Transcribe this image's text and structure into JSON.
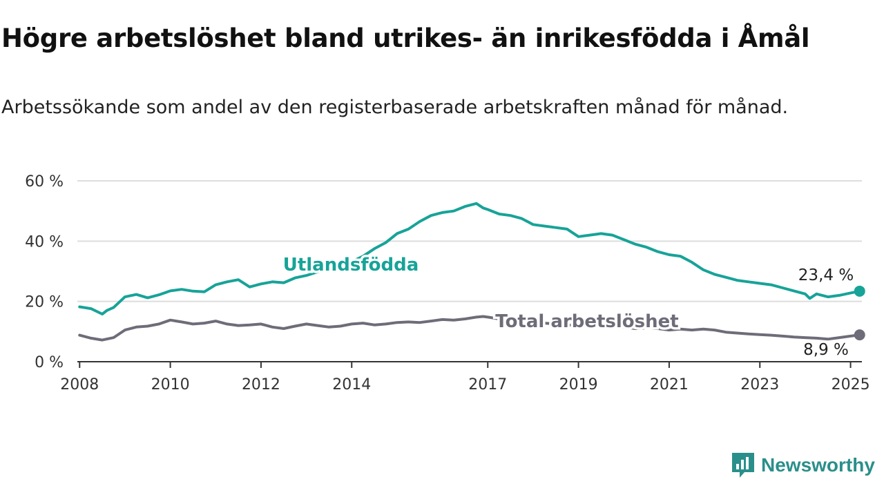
{
  "title": "Högre arbetslöshet bland utrikes- än inrikesfödda i Åmål",
  "subtitle": "Arbetssökande som andel av den registerbaserade arbetskraften månad för månad.",
  "logo": "Newsworthy",
  "colors": {
    "foreign": "#17a398",
    "total": "#6e6c78",
    "grid": "#dddddd",
    "axis": "#333333"
  },
  "chart_data": {
    "type": "line",
    "xlim": [
      2007.95,
      2025.25
    ],
    "ylim": [
      0,
      60
    ],
    "y_ticks": [
      0,
      20,
      40,
      60
    ],
    "y_tick_labels": [
      "0 %",
      "20 %",
      "40 %",
      "60 %"
    ],
    "x_ticks": [
      2008,
      2010,
      2012,
      2014,
      2017,
      2019,
      2021,
      2023,
      2025
    ],
    "x_tick_labels": [
      "2008",
      "2010",
      "2012",
      "2014",
      "2017",
      "2019",
      "2021",
      "2023",
      "2025"
    ],
    "grid": true,
    "series": [
      {
        "name": "Utlandsfödda",
        "end_label": "23,4 %",
        "x": [
          2008.0,
          2008.25,
          2008.5,
          2008.6,
          2008.75,
          2009.0,
          2009.25,
          2009.5,
          2009.75,
          2010.0,
          2010.25,
          2010.5,
          2010.75,
          2011.0,
          2011.25,
          2011.5,
          2011.75,
          2012.0,
          2012.25,
          2012.5,
          2012.75,
          2013.0,
          2013.25,
          2013.5,
          2013.75,
          2014.0,
          2014.25,
          2014.5,
          2014.75,
          2015.0,
          2015.25,
          2015.5,
          2015.75,
          2016.0,
          2016.25,
          2016.5,
          2016.75,
          2016.9,
          2017.0,
          2017.25,
          2017.5,
          2017.75,
          2018.0,
          2018.25,
          2018.5,
          2018.75,
          2019.0,
          2019.25,
          2019.5,
          2019.75,
          2020.0,
          2020.25,
          2020.5,
          2020.75,
          2021.0,
          2021.25,
          2021.5,
          2021.75,
          2022.0,
          2022.25,
          2022.5,
          2022.75,
          2023.0,
          2023.25,
          2023.5,
          2023.75,
          2024.0,
          2024.1,
          2024.25,
          2024.5,
          2024.75,
          2025.0,
          2025.2
        ],
        "values": [
          18.2,
          17.6,
          15.8,
          17.0,
          18.0,
          21.5,
          22.3,
          21.2,
          22.2,
          23.5,
          24.0,
          23.4,
          23.2,
          25.5,
          26.5,
          27.2,
          24.8,
          25.8,
          26.5,
          26.2,
          27.8,
          28.6,
          29.8,
          30.3,
          31.5,
          33.2,
          35.0,
          37.5,
          39.5,
          42.5,
          44.0,
          46.5,
          48.5,
          49.5,
          50.0,
          51.5,
          52.5,
          51.0,
          50.5,
          49.0,
          48.5,
          47.5,
          45.5,
          45.0,
          44.5,
          44.0,
          41.5,
          42.0,
          42.5,
          42.0,
          40.5,
          39.0,
          38.0,
          36.5,
          35.5,
          35.0,
          33.0,
          30.5,
          29.0,
          28.0,
          27.0,
          26.5,
          26.0,
          25.5,
          24.5,
          23.5,
          22.5,
          21.0,
          22.5,
          21.5,
          22.0,
          22.8,
          23.4
        ]
      },
      {
        "name": "Total arbetslöshet",
        "end_label": "8,9 %",
        "x": [
          2008.0,
          2008.25,
          2008.5,
          2008.75,
          2009.0,
          2009.25,
          2009.5,
          2009.75,
          2010.0,
          2010.25,
          2010.5,
          2010.75,
          2011.0,
          2011.25,
          2011.5,
          2011.75,
          2012.0,
          2012.25,
          2012.5,
          2012.75,
          2013.0,
          2013.25,
          2013.5,
          2013.75,
          2014.0,
          2014.25,
          2014.5,
          2014.75,
          2015.0,
          2015.25,
          2015.5,
          2015.75,
          2016.0,
          2016.25,
          2016.5,
          2016.75,
          2016.9,
          2017.0,
          2017.25,
          2017.5,
          2017.75,
          2018.0,
          2018.25,
          2018.5,
          2018.75,
          2019.0,
          2019.25,
          2019.5,
          2019.75,
          2020.0,
          2020.25,
          2020.5,
          2020.75,
          2021.0,
          2021.25,
          2021.5,
          2021.75,
          2022.0,
          2022.25,
          2022.5,
          2022.75,
          2023.0,
          2023.25,
          2023.5,
          2023.75,
          2024.0,
          2024.25,
          2024.5,
          2024.75,
          2025.0,
          2025.2
        ],
        "values": [
          8.8,
          7.8,
          7.2,
          8.0,
          10.5,
          11.5,
          11.8,
          12.5,
          13.8,
          13.2,
          12.5,
          12.8,
          13.5,
          12.5,
          12.0,
          12.2,
          12.5,
          11.5,
          11.0,
          11.8,
          12.5,
          12.0,
          11.5,
          11.8,
          12.5,
          12.8,
          12.2,
          12.5,
          13.0,
          13.2,
          13.0,
          13.5,
          14.0,
          13.8,
          14.2,
          14.8,
          15.0,
          14.8,
          14.2,
          13.8,
          13.5,
          13.0,
          12.8,
          12.5,
          12.2,
          12.0,
          11.8,
          12.0,
          11.8,
          11.5,
          11.0,
          11.2,
          11.0,
          10.5,
          10.8,
          10.5,
          10.8,
          10.5,
          9.8,
          9.5,
          9.2,
          9.0,
          8.8,
          8.5,
          8.2,
          8.0,
          7.8,
          7.5,
          8.0,
          8.5,
          8.9
        ]
      }
    ]
  }
}
